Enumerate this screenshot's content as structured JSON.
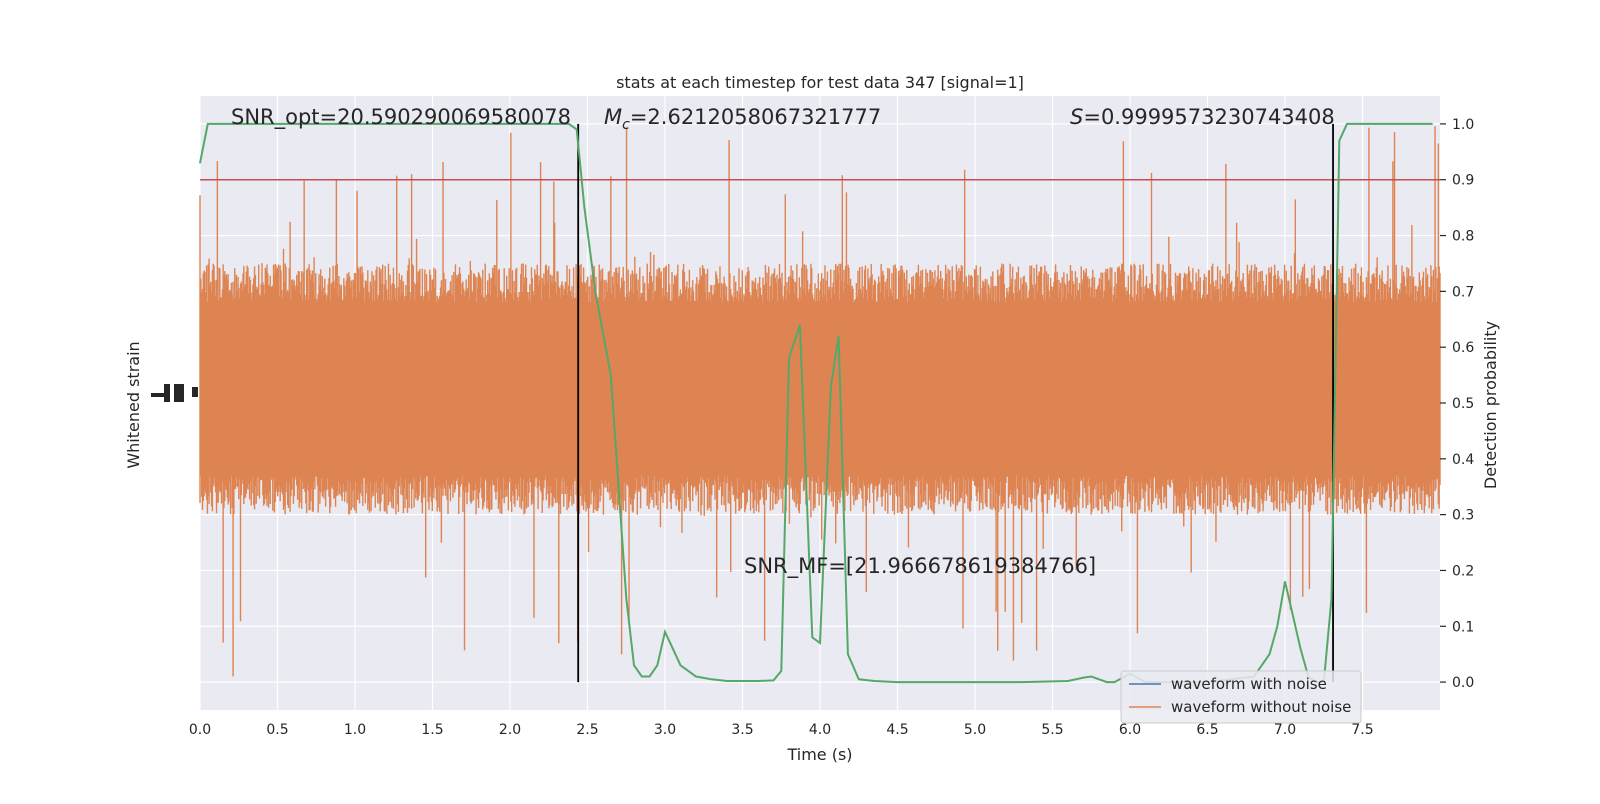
{
  "chart_data": {
    "type": "line",
    "title": "stats at each timestep for test data 347 [signal=1]",
    "xlabel": "Time (s)",
    "ylabel_left": "Whitened strain",
    "ylabel_right": "Detection probability",
    "xlim": [
      0,
      8
    ],
    "ylim_right": [
      -0.05,
      1.05
    ],
    "x_ticks": [
      0.0,
      0.5,
      1.0,
      1.5,
      2.0,
      2.5,
      3.0,
      3.5,
      4.0,
      4.5,
      5.0,
      5.5,
      6.0,
      6.5,
      7.0,
      7.5
    ],
    "x_tick_labels": [
      "0.0",
      "0.5",
      "1.0",
      "1.5",
      "2.0",
      "2.5",
      "3.0",
      "3.5",
      "4.0",
      "4.5",
      "5.0",
      "5.5",
      "6.0",
      "6.5",
      "7.0",
      "7.5"
    ],
    "y_right_ticks": [
      0.0,
      0.1,
      0.2,
      0.3,
      0.4,
      0.5,
      0.6,
      0.7,
      0.8,
      0.9,
      1.0
    ],
    "y_right_tick_labels": [
      "0.0",
      "0.1",
      "0.2",
      "0.3",
      "0.4",
      "0.5",
      "0.6",
      "0.7",
      "0.8",
      "0.9",
      "1.0"
    ],
    "grid": true,
    "legend_position": "bottom-right",
    "legend": [
      {
        "label": "waveform with noise",
        "color": "#4c72b0"
      },
      {
        "label": "waveform without noise",
        "color": "#dd8452"
      }
    ],
    "strain_band": {
      "series": "waveform without noise",
      "color": "#dd8452",
      "typical_probability_range": [
        0.3,
        0.75
      ],
      "extreme_probability_range": [
        0.0,
        1.0
      ]
    },
    "detection_probability": {
      "color": "#55a868",
      "x": [
        0.0,
        0.05,
        0.1,
        0.2,
        0.5,
        1.0,
        1.5,
        2.0,
        2.3,
        2.38,
        2.43,
        2.48,
        2.55,
        2.65,
        2.75,
        2.8,
        2.85,
        2.9,
        2.95,
        3.0,
        3.05,
        3.1,
        3.15,
        3.2,
        3.3,
        3.4,
        3.5,
        3.6,
        3.7,
        3.75,
        3.8,
        3.87,
        3.95,
        4.0,
        4.07,
        4.12,
        4.18,
        4.25,
        4.35,
        4.5,
        5.0,
        5.3,
        5.6,
        5.7,
        5.75,
        5.8,
        5.85,
        5.9,
        6.0,
        6.1,
        6.5,
        6.8,
        6.9,
        6.95,
        7.0,
        7.05,
        7.1,
        7.15,
        7.2,
        7.25,
        7.3,
        7.35,
        7.4,
        7.45,
        7.5,
        7.7,
        7.95
      ],
      "y": [
        0.93,
        1.0,
        1.0,
        1.0,
        1.0,
        1.0,
        1.0,
        1.0,
        1.0,
        1.0,
        0.99,
        0.85,
        0.7,
        0.55,
        0.15,
        0.03,
        0.01,
        0.01,
        0.03,
        0.09,
        0.06,
        0.03,
        0.02,
        0.01,
        0.005,
        0.002,
        0.002,
        0.002,
        0.003,
        0.02,
        0.58,
        0.64,
        0.08,
        0.07,
        0.53,
        0.62,
        0.05,
        0.005,
        0.002,
        0.0,
        0.0,
        0.0,
        0.002,
        0.008,
        0.01,
        0.005,
        0.0,
        0.0,
        0.015,
        0.0,
        0.0,
        0.01,
        0.05,
        0.1,
        0.18,
        0.12,
        0.06,
        0.01,
        0.0,
        0.0,
        0.15,
        0.97,
        1.0,
        1.0,
        1.0,
        1.0,
        1.0
      ]
    },
    "threshold": {
      "y": 0.9,
      "color": "#c44e52"
    },
    "vertical_lines": [
      {
        "x": 2.44,
        "color": "#000000"
      },
      {
        "x": 7.31,
        "color": "#000000"
      }
    ],
    "annotations": {
      "snr_opt": "SNR_opt=20.590290069580078",
      "mc_symbol": "M",
      "mc_sub": "c",
      "mc_value": "=2.6212058067321777",
      "s_symbol": "S",
      "s_value": "=0.9999573230743408",
      "snr_mf": "SNR_MF=[21.966678619384766]"
    }
  }
}
